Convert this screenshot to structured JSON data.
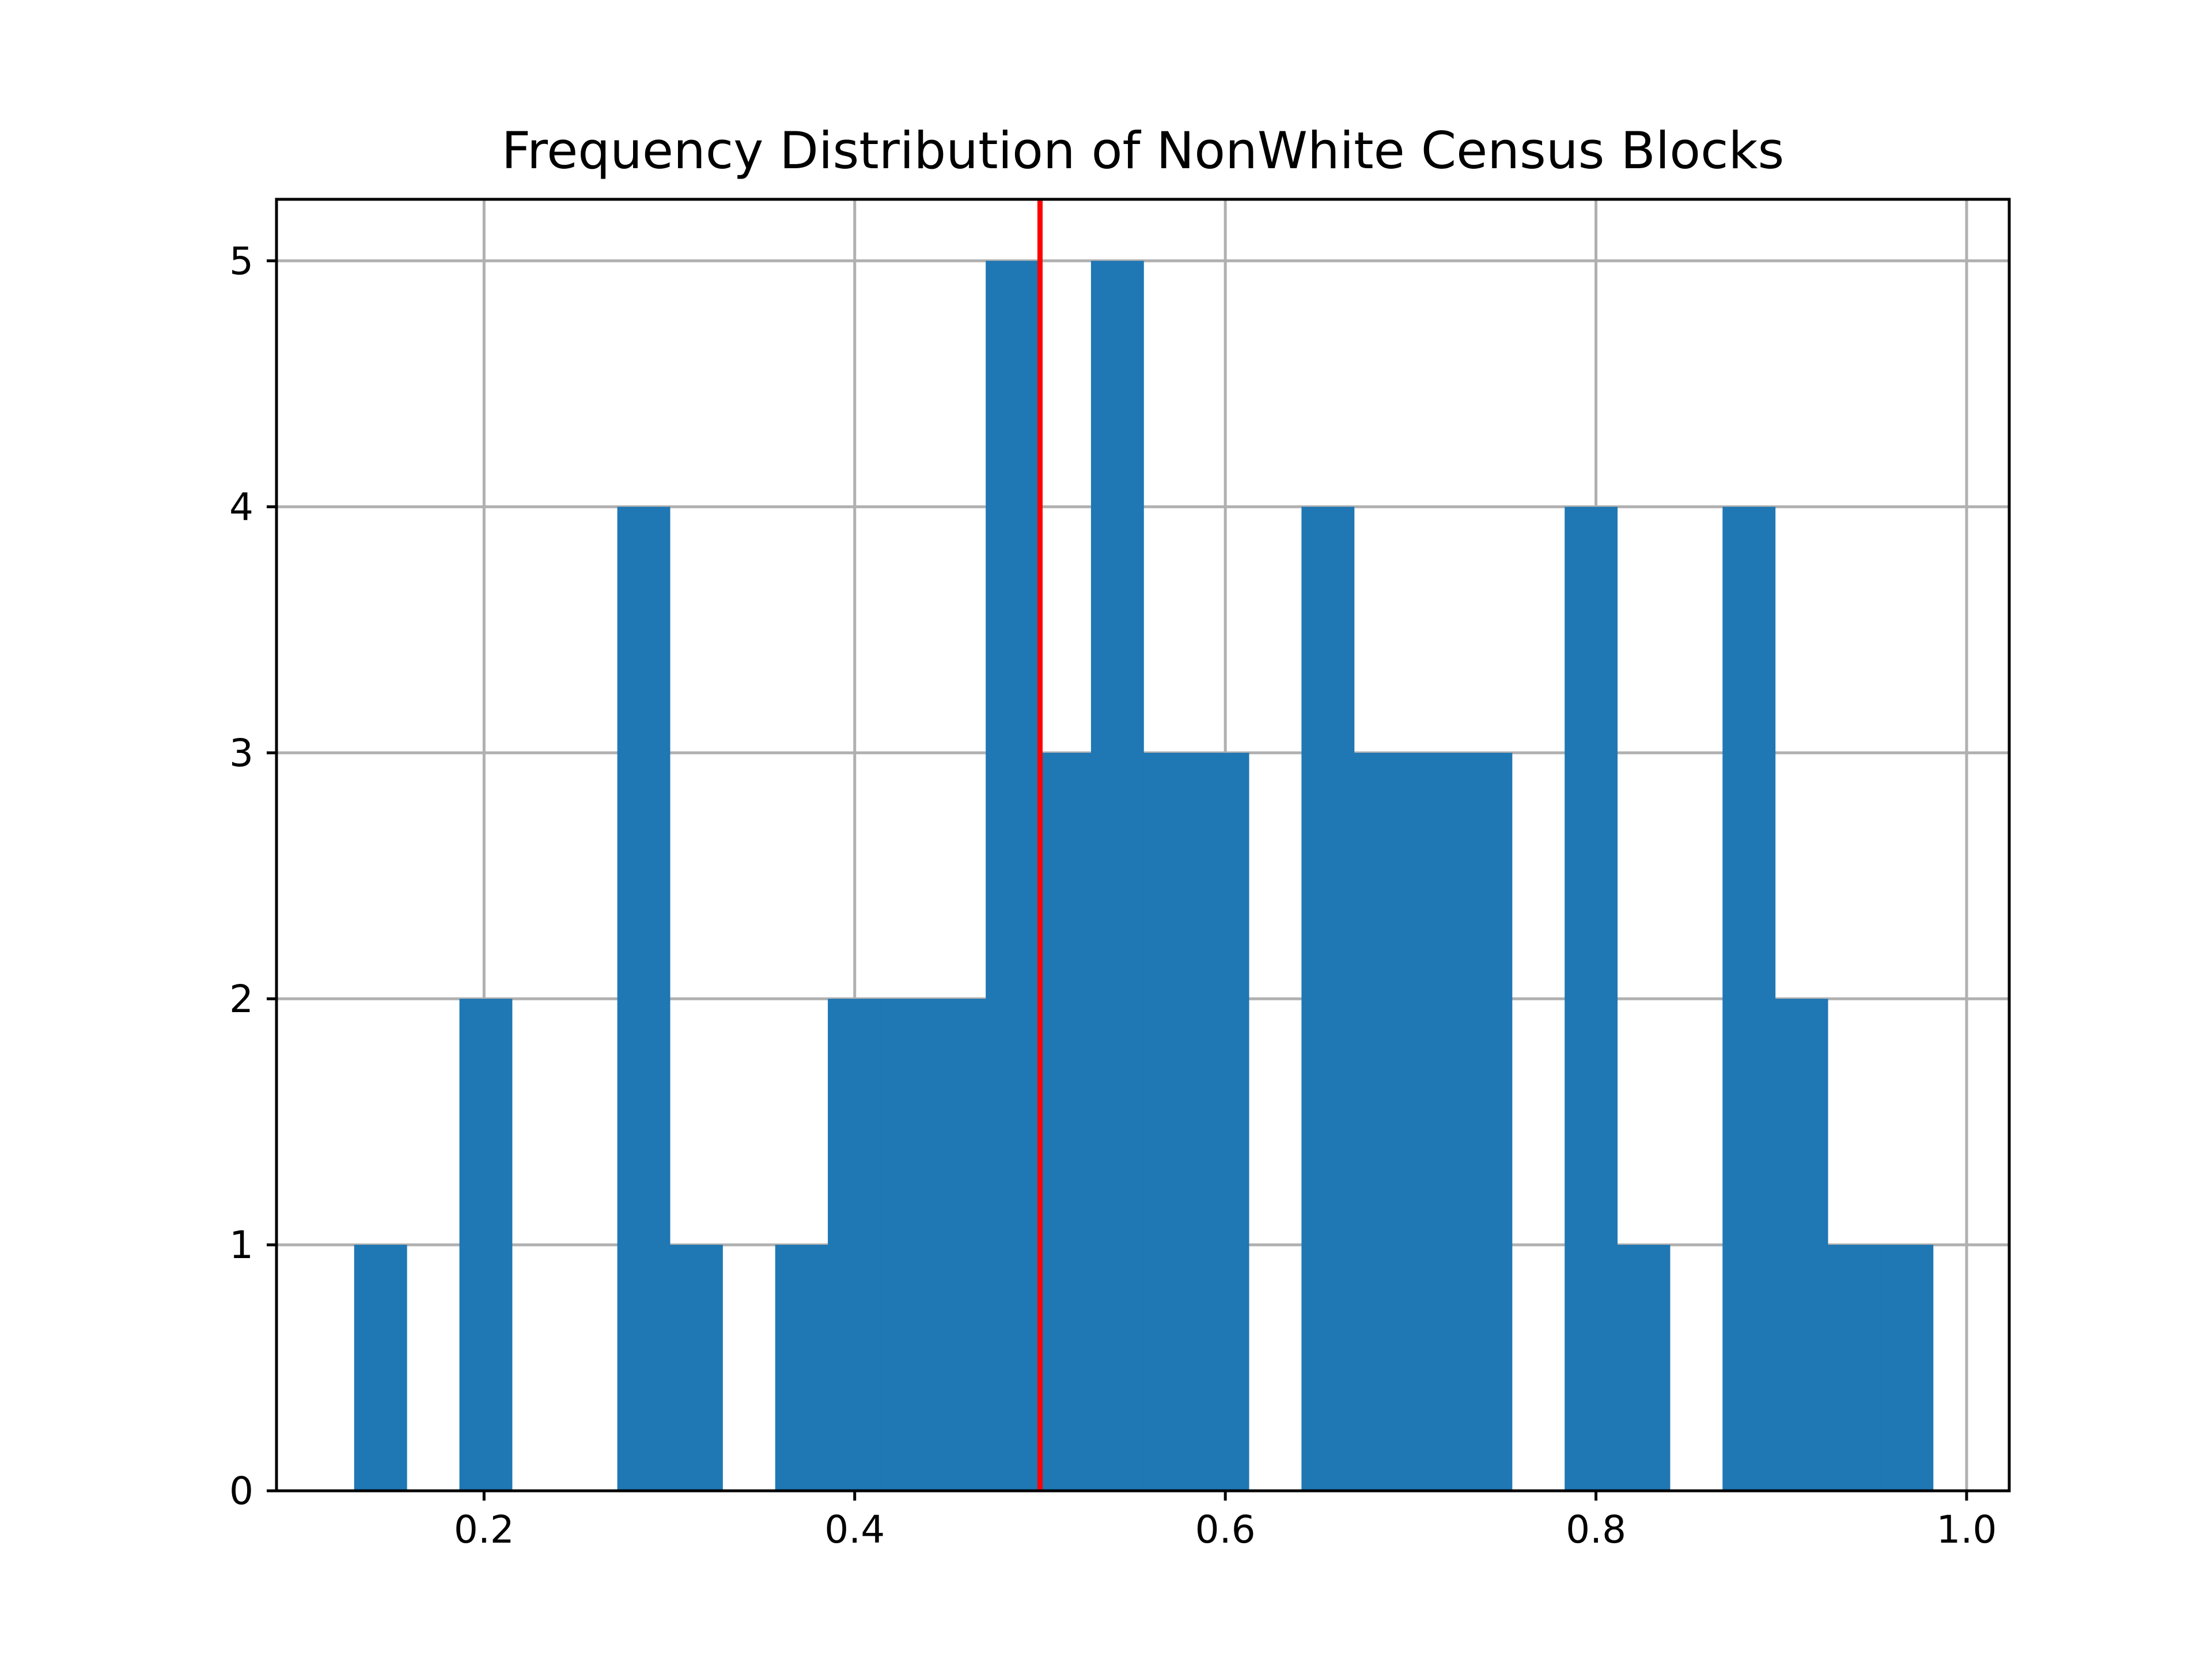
{
  "chart_data": {
    "type": "bar",
    "title": "Frequency Distribution of NonWhite Census Blocks",
    "xlabel": "",
    "ylabel": "",
    "xlim": [
      0.088,
      1.023
    ],
    "ylim": [
      0,
      5.25
    ],
    "xticks": [
      0.2,
      0.4,
      0.6,
      0.8,
      1.0
    ],
    "xtick_labels": [
      "0.2",
      "0.4",
      "0.6",
      "0.8",
      "1.0"
    ],
    "yticks": [
      0,
      1,
      2,
      3,
      4,
      5
    ],
    "ytick_labels": [
      "0",
      "1",
      "2",
      "3",
      "4",
      "5"
    ],
    "grid": true,
    "bar_color": "#1f77b4",
    "bin_edges": [
      0.1299,
      0.1583,
      0.1867,
      0.2151,
      0.2435,
      0.2719,
      0.3003,
      0.3287,
      0.3571,
      0.3855,
      0.4139,
      0.4423,
      0.4707,
      0.4991,
      0.5275,
      0.5559,
      0.5843,
      0.6127,
      0.6411,
      0.6695,
      0.6979,
      0.7263,
      0.7547,
      0.7831,
      0.8115,
      0.8399,
      0.8683,
      0.8967,
      0.9251,
      0.9535,
      0.9819
    ],
    "counts": [
      1,
      0,
      2,
      0,
      0,
      4,
      1,
      0,
      1,
      2,
      2,
      2,
      5,
      3,
      5,
      3,
      3,
      0,
      4,
      3,
      3,
      3,
      0,
      4,
      1,
      0,
      4,
      2,
      1,
      1
    ],
    "reference_line": {
      "x": 0.5,
      "color": "#ff0000"
    }
  }
}
